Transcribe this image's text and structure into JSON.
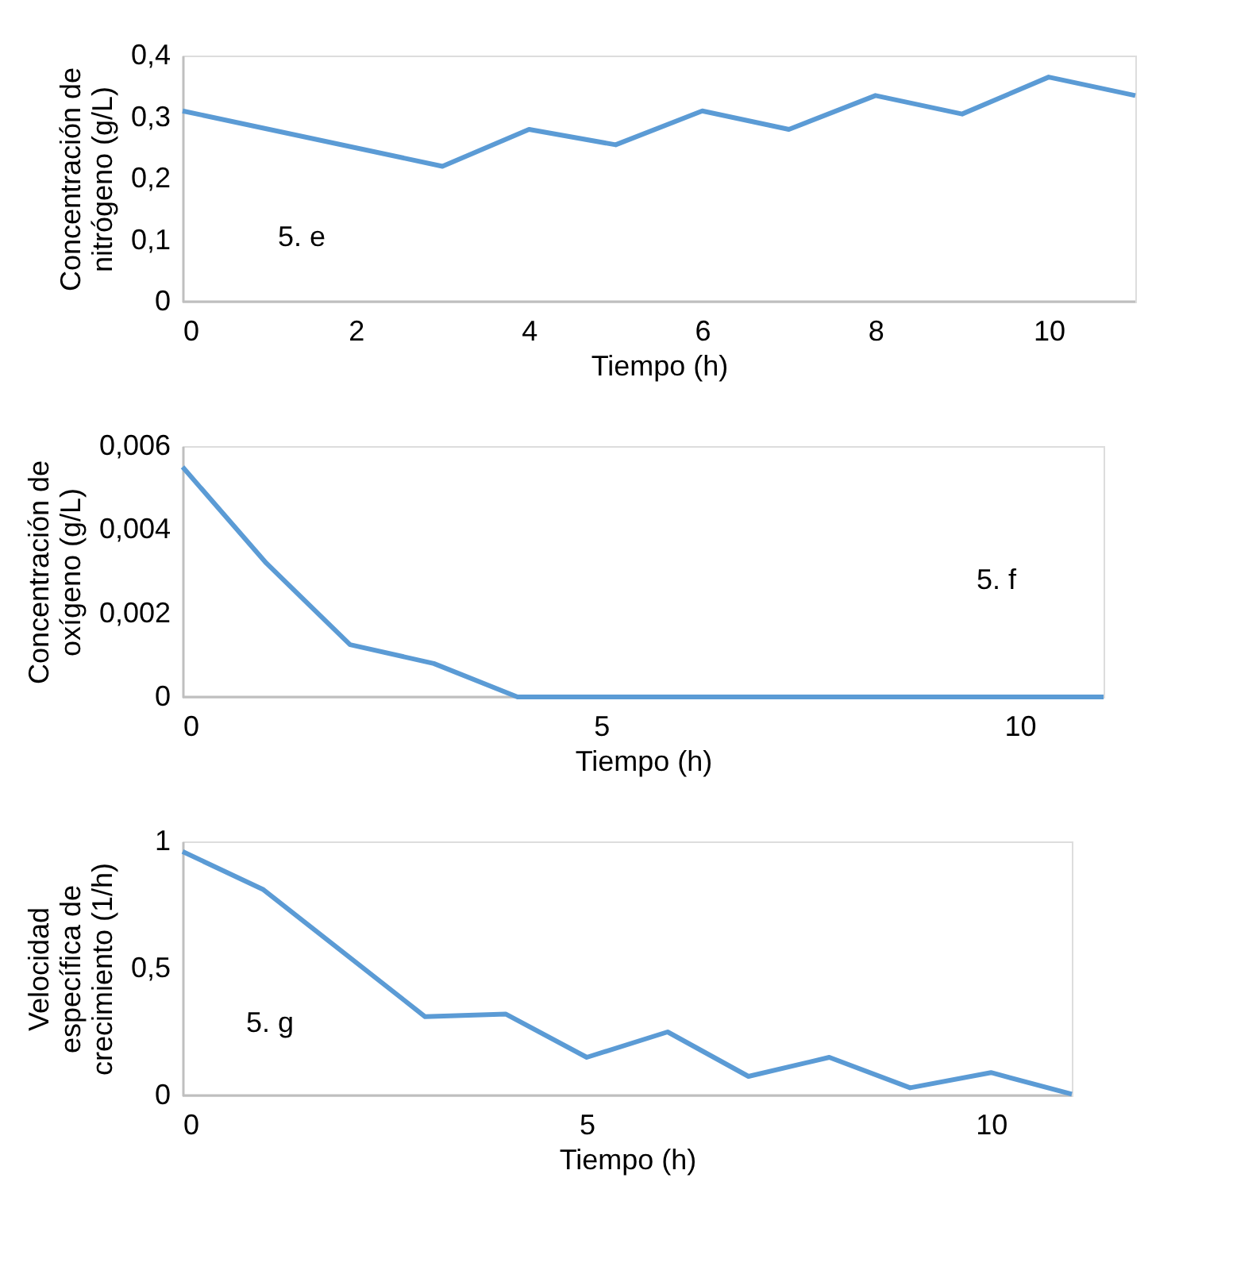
{
  "chart_data": [
    {
      "type": "line",
      "xlabel": "Tiempo (h)",
      "ylabel": "Concentración de nitrógeno (g/L)",
      "annotations": [
        "5. e"
      ],
      "x": [
        0,
        3,
        4,
        5,
        6,
        7,
        8,
        9,
        10,
        11
      ],
      "series": [
        {
          "color": "#5b9bd5",
          "values": [
            0.31,
            0.22,
            0.28,
            0.255,
            0.31,
            0.28,
            0.335,
            0.305,
            0.365,
            0.335
          ]
        }
      ],
      "xlim": [
        0,
        11
      ],
      "xticks": [
        0,
        2,
        4,
        6,
        8,
        10
      ],
      "ylim": [
        0,
        0.4
      ],
      "yticks": [
        0,
        {
          "value": 0.1,
          "label": "0,1"
        },
        {
          "value": 0.2,
          "label": "0,2"
        },
        {
          "value": 0.3,
          "label": "0,3"
        },
        {
          "value": 0.4,
          "label": "0,4"
        }
      ],
      "grid": false
    },
    {
      "type": "line",
      "xlabel": "Tiempo (h)",
      "ylabel": "Concentración de oxígeno (g/L)",
      "annotations": [
        "5. f"
      ],
      "x": [
        0,
        1,
        2,
        3,
        4,
        5,
        6,
        7,
        8,
        9,
        10,
        11
      ],
      "series": [
        {
          "color": "#5b9bd5",
          "values": [
            0.0055,
            0.0032,
            0.00125,
            0.0008,
            0,
            0,
            0,
            0,
            0,
            0,
            0,
            0
          ]
        }
      ],
      "xlim": [
        0,
        11
      ],
      "xticks": [
        0,
        5,
        10
      ],
      "ylim": [
        0,
        0.006
      ],
      "yticks": [
        0,
        {
          "value": 0.002,
          "label": "0,002"
        },
        {
          "value": 0.004,
          "label": "0,004"
        },
        {
          "value": 0.006,
          "label": "0,006"
        }
      ],
      "grid": false
    },
    {
      "type": "line",
      "xlabel": "Tiempo (h)",
      "ylabel": "Velocidad específica de crecimiento (1/h)",
      "annotations": [
        "5. g"
      ],
      "x": [
        0,
        1,
        3,
        4,
        5,
        6,
        7,
        8,
        9,
        10,
        11
      ],
      "series": [
        {
          "color": "#5b9bd5",
          "values": [
            0.96,
            0.81,
            0.31,
            0.32,
            0.15,
            0.25,
            0.075,
            0.15,
            0.03,
            0.09,
            0.005
          ]
        }
      ],
      "xlim": [
        0,
        11
      ],
      "xticks": [
        0,
        5,
        10
      ],
      "ylim": [
        0,
        1
      ],
      "yticks": [
        0,
        {
          "value": 0.5,
          "label": "0,5"
        },
        1
      ],
      "grid": false
    }
  ]
}
